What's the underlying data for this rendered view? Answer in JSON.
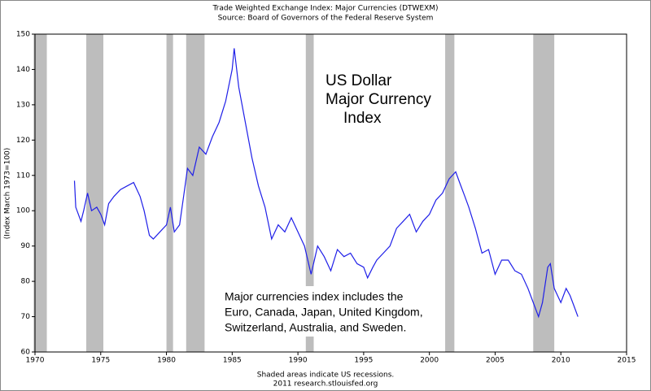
{
  "chart_data": {
    "type": "line",
    "title": "Trade Weighted Exchange Index: Major Currencies (DTWEXM)",
    "subtitle": "Source: Board of Governors of the Federal Reserve System",
    "y_label": "(Index March 1973=100)",
    "footer": [
      "Shaded areas indicate US recessions.",
      "2011 research.stlouisfed.org"
    ],
    "annotation_title": [
      "US Dollar",
      "Major Currency",
      "Index"
    ],
    "annotation_note": [
      "Major currencies index includes the",
      "Euro, Canada, Japan, United Kingdom,",
      "Switzerland, Australia, and Sweden."
    ],
    "xlim": [
      1970,
      2015
    ],
    "xticks": [
      1970,
      1975,
      1980,
      1985,
      1990,
      1995,
      2000,
      2005,
      2010,
      2015
    ],
    "ylim": [
      60,
      150
    ],
    "yticks": [
      60,
      70,
      80,
      90,
      100,
      110,
      120,
      130,
      140,
      150
    ],
    "grid": false,
    "recession_color": "#bdbdbd",
    "recessions": [
      [
        1969.9,
        1970.9
      ],
      [
        1973.9,
        1975.2
      ],
      [
        1980.0,
        1980.5
      ],
      [
        1981.5,
        1982.9
      ],
      [
        1990.6,
        1991.2
      ],
      [
        2001.2,
        2001.9
      ],
      [
        2007.9,
        2009.5
      ]
    ],
    "series": [
      {
        "color": "#1f1fe8",
        "x": [
          1973.0,
          1973.1,
          1973.5,
          1973.7,
          1974.0,
          1974.3,
          1974.7,
          1975.0,
          1975.3,
          1975.6,
          1976.0,
          1976.5,
          1977.0,
          1977.5,
          1978.0,
          1978.3,
          1978.7,
          1979.0,
          1979.5,
          1980.0,
          1980.3,
          1980.6,
          1981.0,
          1981.3,
          1981.6,
          1982.0,
          1982.5,
          1983.0,
          1983.5,
          1984.0,
          1984.5,
          1985.0,
          1985.15,
          1985.5,
          1986.0,
          1986.5,
          1987.0,
          1987.5,
          1988.0,
          1988.5,
          1989.0,
          1989.5,
          1990.0,
          1990.5,
          1991.0,
          1991.5,
          1992.0,
          1992.5,
          1993.0,
          1993.5,
          1994.0,
          1994.5,
          1995.0,
          1995.3,
          1995.7,
          1996.0,
          1996.5,
          1997.0,
          1997.5,
          1998.0,
          1998.5,
          1999.0,
          1999.5,
          2000.0,
          2000.5,
          2001.0,
          2001.5,
          2002.0,
          2002.3,
          2002.7,
          2003.0,
          2003.5,
          2004.0,
          2004.5,
          2005.0,
          2005.5,
          2006.0,
          2006.5,
          2007.0,
          2007.5,
          2008.0,
          2008.3,
          2008.6,
          2009.0,
          2009.2,
          2009.5,
          2010.0,
          2010.4,
          2010.7,
          2011.0,
          2011.3
        ],
        "values": [
          108.5,
          101,
          97,
          100,
          105,
          100,
          101,
          99,
          96,
          102,
          104,
          106,
          107,
          108,
          104,
          100,
          93,
          92,
          94,
          96,
          101,
          94,
          96,
          104,
          112,
          110,
          118,
          116,
          121,
          125,
          131,
          140,
          146,
          135,
          125,
          115,
          107,
          101,
          92,
          96,
          94,
          98,
          94,
          90,
          82,
          90,
          87,
          83,
          89,
          87,
          88,
          85,
          84,
          81,
          84,
          86,
          88,
          90,
          95,
          97,
          99,
          94,
          97,
          99,
          103,
          105,
          109,
          111,
          108,
          104,
          101,
          95,
          88,
          89,
          82,
          86,
          86,
          83,
          82,
          78,
          73,
          70,
          74,
          84,
          85,
          78,
          74,
          78,
          76,
          73,
          70
        ]
      }
    ]
  }
}
